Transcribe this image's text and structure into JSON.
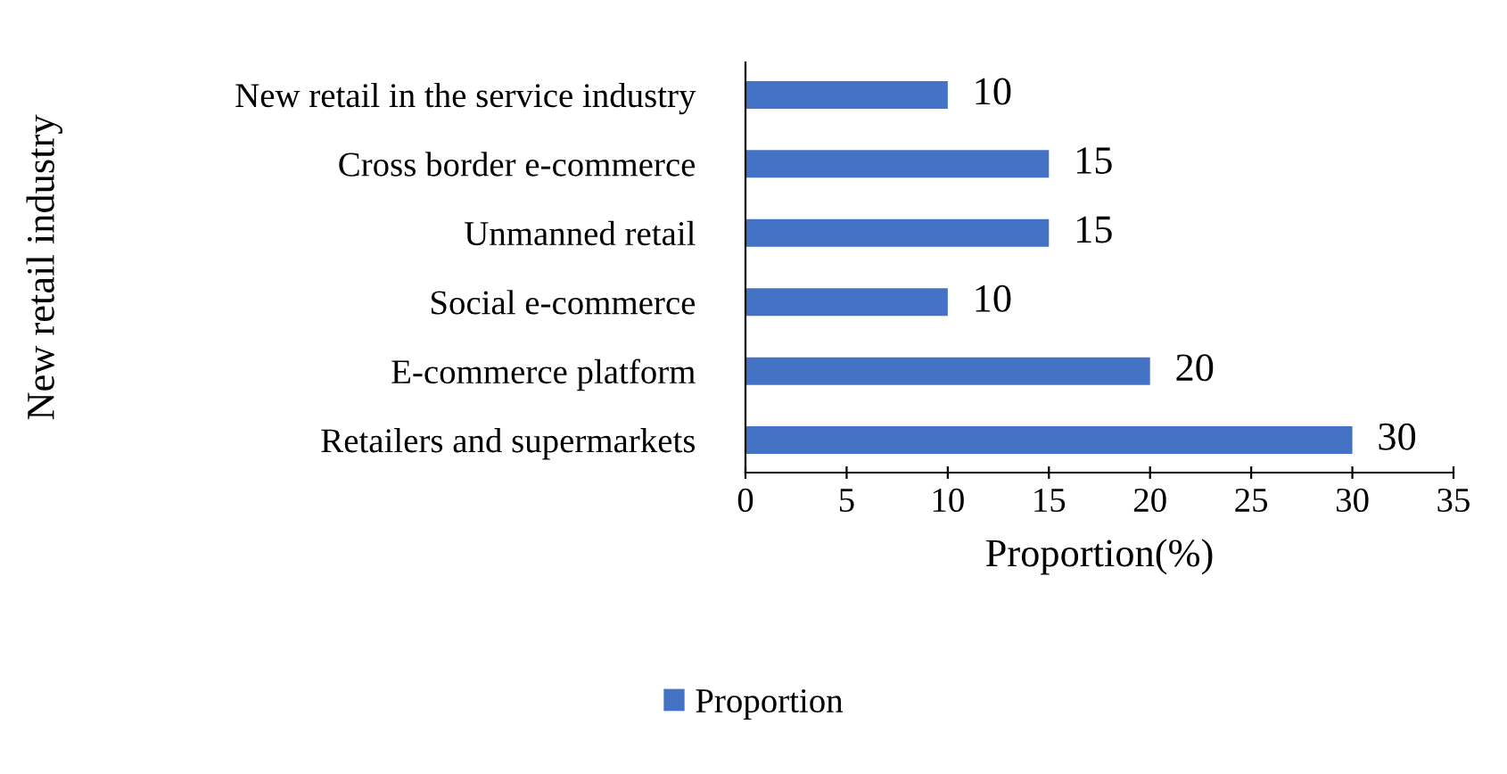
{
  "chart_data": {
    "type": "bar",
    "orientation": "horizontal",
    "xlabel": "Proportion(%)",
    "ylabel": "New retail industry",
    "categories": [
      "New retail in the service industry",
      "Cross border e-commerce",
      "Unmanned retail",
      "Social e-commerce",
      "E-commerce platform",
      "Retailers and supermarkets"
    ],
    "series": [
      {
        "name": "Proportion",
        "color": "#4472c4",
        "values": [
          10,
          15,
          15,
          10,
          20,
          30
        ]
      }
    ],
    "xlim": [
      0,
      35
    ],
    "xticks": [
      0,
      5,
      10,
      15,
      20,
      25,
      30,
      35
    ],
    "grid": false,
    "legend": "bottom",
    "data_labels": true
  }
}
